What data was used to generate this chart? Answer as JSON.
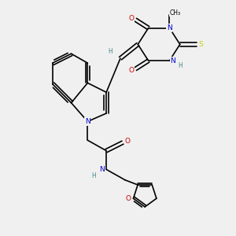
{
  "background_color": "#f0f0f0",
  "figsize": [
    3.0,
    3.0
  ],
  "dpi": 100,
  "atom_colors": {
    "C": "#000000",
    "N": "#0000cc",
    "O": "#cc0000",
    "S": "#cccc00",
    "H": "#448888"
  },
  "lw": 1.2,
  "fs": 6.5
}
